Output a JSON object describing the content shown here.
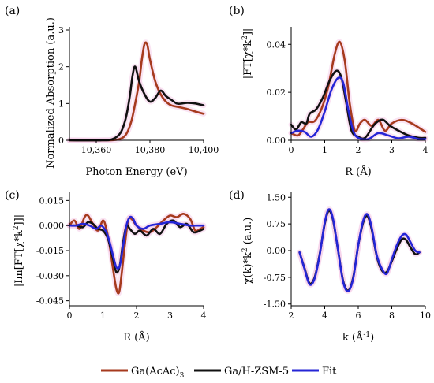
{
  "colors": {
    "ga_acac": "#a63a1e",
    "ga_hzsm5": "#111111",
    "fit": "#2525d6",
    "highlight": "#f4c4e4"
  },
  "legend": [
    {
      "key": "ga_acac",
      "label": "Ga(AcAc)",
      "sub": "3"
    },
    {
      "key": "ga_hzsm5",
      "label": "Ga/H-ZSM-5",
      "sub": ""
    },
    {
      "key": "fit",
      "label": "Fit",
      "sub": ""
    }
  ],
  "chart_data": [
    {
      "panel": "(a)",
      "type": "line",
      "xlabel": "Photon Energy (eV)",
      "ylabel": "Normalized Absorption (a.u.)",
      "xlim": [
        10350,
        10400
      ],
      "ylim": [
        0,
        3
      ],
      "xticks": [
        10360,
        10380,
        10400
      ],
      "xtick_labels": [
        "10,360",
        "10,380",
        "10,400"
      ],
      "yticks": [
        0,
        1,
        2,
        3
      ],
      "ytick_labels": [
        "0",
        "1",
        "2",
        "3"
      ],
      "grid": false,
      "series": [
        {
          "key": "ga_acac",
          "x": [
            10350,
            10362,
            10368,
            10371,
            10373,
            10374.5,
            10376,
            10377,
            10378,
            10379,
            10380,
            10382,
            10384,
            10386,
            10388,
            10391,
            10394,
            10397,
            10400
          ],
          "y": [
            0,
            0,
            0.02,
            0.15,
            0.5,
            1.0,
            1.6,
            2.2,
            2.62,
            2.6,
            2.2,
            1.6,
            1.25,
            1.05,
            0.95,
            0.9,
            0.85,
            0.78,
            0.72
          ]
        },
        {
          "key": "ga_hzsm5",
          "x": [
            10350,
            10362,
            10366,
            10369,
            10371,
            10372.5,
            10373.5,
            10374.5,
            10376,
            10378,
            10380,
            10382,
            10384,
            10386,
            10388,
            10390,
            10392,
            10394,
            10397,
            10400
          ],
          "y": [
            0,
            0,
            0.03,
            0.2,
            0.6,
            1.2,
            1.75,
            2.0,
            1.6,
            1.25,
            1.05,
            1.15,
            1.35,
            1.2,
            1.1,
            1.0,
            1.0,
            1.02,
            1.0,
            0.95
          ]
        }
      ]
    },
    {
      "panel": "(b)",
      "type": "line",
      "xlabel": "R (Å)",
      "ylabel": "|FT[χ*k²]|",
      "xlim": [
        0,
        4
      ],
      "ylim": [
        0,
        0.046
      ],
      "xticks": [
        0,
        1,
        2,
        3,
        4
      ],
      "xtick_labels": [
        "0",
        "1",
        "2",
        "3",
        "4"
      ],
      "yticks": [
        0,
        0.02,
        0.04
      ],
      "ytick_labels": [
        "0.00",
        "0.02",
        "0.04"
      ],
      "grid": false,
      "series": [
        {
          "key": "ga_acac",
          "x": [
            0,
            0.2,
            0.35,
            0.5,
            0.7,
            0.9,
            1.1,
            1.3,
            1.45,
            1.6,
            1.75,
            1.9,
            2.05,
            2.2,
            2.4,
            2.6,
            2.8,
            3.0,
            3.3,
            3.6,
            4.0
          ],
          "y": [
            0.003,
            0.002,
            0.0045,
            0.0075,
            0.008,
            0.013,
            0.022,
            0.036,
            0.041,
            0.033,
            0.015,
            0.004,
            0.007,
            0.0085,
            0.006,
            0.0085,
            0.004,
            0.007,
            0.0085,
            0.007,
            0.0035
          ]
        },
        {
          "key": "ga_hzsm5",
          "x": [
            0,
            0.15,
            0.3,
            0.45,
            0.55,
            0.75,
            0.95,
            1.15,
            1.35,
            1.5,
            1.65,
            1.8,
            2.0,
            2.2,
            2.45,
            2.6,
            2.75,
            2.95,
            3.2,
            3.5,
            3.8,
            4.0
          ],
          "y": [
            0.0065,
            0.0045,
            0.0075,
            0.007,
            0.011,
            0.013,
            0.018,
            0.025,
            0.029,
            0.026,
            0.015,
            0.004,
            0.0015,
            0.001,
            0.006,
            0.008,
            0.0085,
            0.006,
            0.004,
            0.002,
            0.001,
            0.001
          ]
        },
        {
          "key": "fit",
          "x": [
            0,
            0.2,
            0.4,
            0.6,
            0.8,
            1.0,
            1.2,
            1.4,
            1.55,
            1.7,
            1.85,
            2.0,
            2.3,
            2.6,
            2.9,
            3.2,
            3.5,
            3.8,
            4.0
          ],
          "y": [
            0.003,
            0.004,
            0.0035,
            0.0015,
            0.0045,
            0.012,
            0.021,
            0.026,
            0.024,
            0.013,
            0.004,
            0.001,
            0.0005,
            0.003,
            0.002,
            0.0008,
            0.0015,
            0.0005,
            0.0005
          ]
        }
      ]
    },
    {
      "panel": "(c)",
      "type": "line",
      "xlabel": "R (Å)",
      "ylabel": "|Im[FT[χ*k²]]|",
      "xlim": [
        0,
        4
      ],
      "ylim": [
        -0.048,
        0.018
      ],
      "xticks": [
        0,
        1,
        2,
        3,
        4
      ],
      "xtick_labels": [
        "0",
        "1",
        "2",
        "3",
        "4"
      ],
      "yticks": [
        0.015,
        0,
        -0.015,
        -0.03,
        -0.045
      ],
      "ytick_labels": [
        "0.015",
        "0.000",
        "-0.015",
        "-0.030",
        "-0.045"
      ],
      "grid": false,
      "series": [
        {
          "key": "ga_acac",
          "x": [
            0,
            0.15,
            0.3,
            0.45,
            0.55,
            0.7,
            0.85,
            1.0,
            1.1,
            1.2,
            1.3,
            1.4,
            1.48,
            1.55,
            1.65,
            1.75,
            1.85,
            2.0,
            2.2,
            2.4,
            2.6,
            2.8,
            3.0,
            3.2,
            3.4,
            3.6,
            3.75,
            3.9,
            4.0
          ],
          "y": [
            0.0,
            0.003,
            -0.002,
            0.005,
            0.006,
            0.001,
            -0.003,
            0.003,
            -0.002,
            -0.012,
            -0.026,
            -0.038,
            -0.04,
            -0.03,
            -0.012,
            0.003,
            0.004,
            0.0,
            -0.003,
            -0.004,
            -0.001,
            0.003,
            0.006,
            0.005,
            0.007,
            0.004,
            -0.003,
            -0.002,
            -0.001
          ]
        },
        {
          "key": "ga_hzsm5",
          "x": [
            0,
            0.2,
            0.4,
            0.55,
            0.7,
            0.85,
            1.0,
            1.15,
            1.3,
            1.4,
            1.5,
            1.6,
            1.7,
            1.8,
            1.95,
            2.1,
            2.3,
            2.5,
            2.7,
            2.9,
            3.1,
            3.3,
            3.5,
            3.7,
            3.9,
            4.0
          ],
          "y": [
            0.0,
            0.0,
            -0.001,
            0.002,
            0.001,
            -0.002,
            -0.003,
            -0.008,
            -0.02,
            -0.028,
            -0.024,
            -0.01,
            0.0,
            -0.002,
            -0.005,
            -0.003,
            -0.006,
            -0.002,
            -0.005,
            0.001,
            0.003,
            -0.001,
            0.001,
            -0.004,
            -0.003,
            -0.002
          ]
        },
        {
          "key": "fit",
          "x": [
            0,
            0.2,
            0.4,
            0.6,
            0.8,
            0.95,
            1.1,
            1.2,
            1.3,
            1.4,
            1.5,
            1.6,
            1.7,
            1.8,
            1.9,
            2.0,
            2.2,
            2.4,
            2.7,
            3.0,
            3.3,
            3.6,
            3.8,
            4.0
          ],
          "y": [
            0.0,
            0.0,
            0.001,
            0.0,
            -0.002,
            0.0,
            -0.004,
            -0.01,
            -0.018,
            -0.025,
            -0.024,
            -0.012,
            0.0,
            0.005,
            0.004,
            0.0,
            -0.002,
            0.0,
            0.001,
            0.002,
            0.001,
            0.0,
            0.0,
            0.0
          ]
        }
      ]
    },
    {
      "panel": "(d)",
      "type": "line",
      "xlabel": "k (Å⁻¹)",
      "ylabel": "χ(k)*k² (a.u.)",
      "xlim": [
        2,
        10
      ],
      "ylim": [
        -1.55,
        1.55
      ],
      "xticks": [
        2,
        4,
        6,
        8,
        10
      ],
      "xtick_labels": [
        "2",
        "4",
        "6",
        "8",
        "10"
      ],
      "yticks": [
        1.5,
        0.75,
        0,
        -0.75,
        -1.5
      ],
      "ytick_labels": [
        "1.50",
        "0.75",
        "0.00",
        "-0.75",
        "-1.50"
      ],
      "grid": false,
      "series": [
        {
          "key": "ga_hzsm5",
          "x": [
            2.5,
            2.8,
            3.1,
            3.4,
            3.7,
            4.0,
            4.25,
            4.5,
            4.8,
            5.1,
            5.4,
            5.7,
            6.0,
            6.3,
            6.55,
            6.8,
            7.1,
            7.4,
            7.7,
            8.0,
            8.3,
            8.6,
            8.85,
            9.1,
            9.4,
            9.65
          ],
          "y": [
            -0.05,
            -0.5,
            -0.92,
            -0.75,
            -0.1,
            0.75,
            1.12,
            0.85,
            0.0,
            -0.85,
            -1.12,
            -0.75,
            0.15,
            0.8,
            0.97,
            0.6,
            -0.15,
            -0.55,
            -0.6,
            -0.3,
            0.05,
            0.32,
            0.3,
            0.1,
            -0.1,
            -0.05
          ]
        },
        {
          "key": "fit",
          "x": [
            2.5,
            2.8,
            3.1,
            3.4,
            3.7,
            4.0,
            4.25,
            4.5,
            4.8,
            5.1,
            5.4,
            5.7,
            6.0,
            6.3,
            6.55,
            6.8,
            7.1,
            7.4,
            7.7,
            8.0,
            8.3,
            8.6,
            8.85,
            9.1,
            9.4,
            9.65
          ],
          "y": [
            -0.05,
            -0.52,
            -0.95,
            -0.78,
            -0.12,
            0.78,
            1.16,
            0.88,
            0.0,
            -0.88,
            -1.14,
            -0.78,
            0.15,
            0.85,
            1.02,
            0.65,
            -0.12,
            -0.5,
            -0.65,
            -0.25,
            0.15,
            0.42,
            0.45,
            0.25,
            0.0,
            -0.05
          ]
        }
      ]
    }
  ]
}
